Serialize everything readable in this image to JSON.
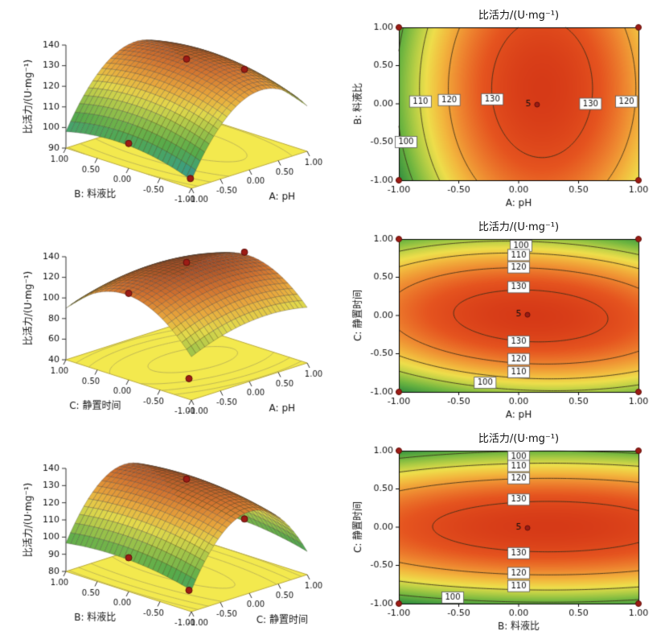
{
  "figure": {
    "background": "#ffffff"
  },
  "colors": {
    "surface_colormap": [
      [
        "0",
        "#3a6ab5"
      ],
      [
        "0.15",
        "#3d9f7e"
      ],
      [
        "0.30",
        "#58ab4a"
      ],
      [
        "0.45",
        "#9fc44a"
      ],
      [
        "0.58",
        "#e3d94c"
      ],
      [
        "0.70",
        "#e9a83d"
      ],
      [
        "0.83",
        "#d2722f"
      ],
      [
        "1",
        "#8e3b24"
      ]
    ],
    "contour_colormap": [
      [
        "0",
        "#2f8c3f"
      ],
      [
        "0.18",
        "#6cb43f"
      ],
      [
        "0.34",
        "#b7cf45"
      ],
      [
        "0.46",
        "#eede4b"
      ],
      [
        "0.58",
        "#f2b83e"
      ],
      [
        "0.72",
        "#ee8630"
      ],
      [
        "0.86",
        "#e5541f"
      ],
      [
        "1",
        "#d63a17"
      ]
    ],
    "floor": "#f3e94e",
    "floor_edge": "#b9a93a",
    "floor_contour_line": "#b4ab55",
    "mesh_line": "rgba(50,45,38,0.55)",
    "contour_line": "rgba(55,45,25,0.85)",
    "design_point": "#9d1c15",
    "design_point_edge": "#5f0e0a",
    "axis_text": "#111111"
  },
  "axes_shared": {
    "tick_values": [
      -1,
      -0.5,
      0,
      0.5,
      1
    ],
    "tick_labels": [
      "-1.00",
      "-0.50",
      "0.00",
      "0.50",
      "1.00"
    ]
  },
  "chart_data": [
    {
      "type": "surface3d",
      "response_label": "比活力/(U·mg⁻¹)",
      "x_axis": {
        "title": "A: pH"
      },
      "y_axis": {
        "title": "B: 料液比"
      },
      "z_axis": {
        "min": 90,
        "max": 140,
        "ticks": [
          90,
          100,
          110,
          120,
          130,
          140
        ]
      },
      "model": {
        "b0": 133,
        "bx": 9,
        "by": 2,
        "bxx": -23,
        "byy": -5,
        "bxy": 0
      },
      "floor_levels": [
        100,
        110,
        120,
        130
      ],
      "surface_points": [
        [
          -1,
          0
        ],
        [
          0,
          0
        ],
        [
          1,
          0
        ]
      ],
      "floor_points": [
        [
          -0.8,
          -0.8
        ]
      ]
    },
    {
      "type": "contour",
      "title": "比活力/(U·mg⁻¹)",
      "x_axis": {
        "title": "A: pH"
      },
      "y_axis": {
        "title": "B: 料液比"
      },
      "levels": [
        100,
        110,
        120,
        130
      ],
      "model": {
        "b0": 133,
        "bx": 9,
        "by": 2,
        "bxx": -23,
        "byy": -5,
        "bxy": 0
      },
      "contour_labels": [
        {
          "text": "100",
          "x": -0.94,
          "y": -0.5
        },
        {
          "text": "110",
          "x": -0.82,
          "y": 0.03
        },
        {
          "text": "120",
          "x": -0.58,
          "y": 0.05
        },
        {
          "text": "130",
          "x": -0.22,
          "y": 0.06
        },
        {
          "text": "130",
          "x": 0.6,
          "y": 0.0
        },
        {
          "text": "120",
          "x": 0.9,
          "y": 0.03
        }
      ],
      "center_label": {
        "text": "5",
        "x": 0.08,
        "y": 0.0
      },
      "design_points": [
        [
          -1,
          -1
        ],
        [
          1,
          -1
        ],
        [
          -1,
          1
        ],
        [
          1,
          1
        ]
      ]
    },
    {
      "type": "surface3d",
      "response_label": "比活力/(U·mg⁻¹)",
      "x_axis": {
        "title": "A: pH"
      },
      "y_axis": {
        "title": "C: 静置时间"
      },
      "z_axis": {
        "min": 40,
        "max": 140,
        "ticks": [
          40,
          60,
          80,
          100,
          120,
          140
        ]
      },
      "model": {
        "b0": 134,
        "bx": 2,
        "by": 0,
        "bxx": -10,
        "byy": -36,
        "bxy": -4
      },
      "floor_levels": [
        100,
        110,
        120,
        130
      ],
      "surface_points": [
        [
          -1,
          0
        ],
        [
          0,
          0
        ],
        [
          1,
          0
        ]
      ],
      "floor_points": [
        [
          -0.5,
          -0.5
        ]
      ]
    },
    {
      "type": "contour",
      "title": "比活力/(U·mg⁻¹)",
      "x_axis": {
        "title": "A: pH"
      },
      "y_axis": {
        "title": "C: 静置时间"
      },
      "levels": [
        100,
        110,
        120,
        130
      ],
      "model": {
        "b0": 134,
        "bx": 2,
        "by": 0,
        "bxx": -10,
        "byy": -36,
        "bxy": -4
      },
      "contour_labels": [
        {
          "text": "100",
          "x": 0.02,
          "y": 0.91
        },
        {
          "text": "110",
          "x": 0.0,
          "y": 0.79
        },
        {
          "text": "120",
          "x": 0.0,
          "y": 0.63
        },
        {
          "text": "130",
          "x": 0.0,
          "y": 0.37
        },
        {
          "text": "130",
          "x": 0.0,
          "y": -0.34
        },
        {
          "text": "120",
          "x": 0.0,
          "y": -0.57
        },
        {
          "text": "110",
          "x": 0.0,
          "y": -0.74
        },
        {
          "text": "100",
          "x": -0.28,
          "y": -0.88
        }
      ],
      "center_label": {
        "text": "5",
        "x": 0.0,
        "y": 0.02
      },
      "design_points": [
        [
          -1,
          -1
        ],
        [
          1,
          -1
        ],
        [
          -1,
          1
        ],
        [
          1,
          1
        ]
      ]
    },
    {
      "type": "surface3d",
      "response_label": "比活力/(U·mg⁻¹)",
      "x_axis": {
        "title": "C: 静置时间"
      },
      "y_axis": {
        "title": "B: 料液比"
      },
      "z_axis": {
        "min": 80,
        "max": 140,
        "ticks": [
          80,
          90,
          100,
          110,
          120,
          130,
          140
        ]
      },
      "model": {
        "b0": 133.5,
        "bx": 0.5,
        "by": 2,
        "bxx": -34.5,
        "byy": -4,
        "bxy": 0
      },
      "floor_levels": [
        100,
        110,
        120,
        130
      ],
      "surface_points": [
        [
          -1,
          0
        ],
        [
          0,
          0
        ],
        [
          1,
          0
        ]
      ],
      "floor_points": [
        [
          -0.5,
          -0.5
        ]
      ]
    },
    {
      "type": "contour",
      "title": "比活力/(U·mg⁻¹)",
      "x_axis": {
        "title": "B: 料液比"
      },
      "y_axis": {
        "title": "C: 静置时间"
      },
      "levels": [
        100,
        110,
        120,
        130
      ],
      "model": {
        "b0": 133.5,
        "bx": 2,
        "by": 0.5,
        "bxx": -4,
        "byy": -34.5,
        "bxy": 0
      },
      "contour_labels": [
        {
          "text": "100",
          "x": 0.0,
          "y": 0.92
        },
        {
          "text": "110",
          "x": 0.0,
          "y": 0.8
        },
        {
          "text": "120",
          "x": 0.0,
          "y": 0.64
        },
        {
          "text": "130",
          "x": 0.0,
          "y": 0.36
        },
        {
          "text": "130",
          "x": 0.0,
          "y": -0.34
        },
        {
          "text": "120",
          "x": 0.0,
          "y": -0.6
        },
        {
          "text": "110",
          "x": 0.0,
          "y": -0.77
        },
        {
          "text": "100",
          "x": -0.55,
          "y": -0.92
        }
      ],
      "center_label": {
        "text": "5",
        "x": 0.0,
        "y": 0.0
      },
      "design_points": [
        [
          -1,
          -1
        ],
        [
          1,
          -1
        ],
        [
          -1,
          1
        ],
        [
          1,
          1
        ]
      ]
    }
  ]
}
